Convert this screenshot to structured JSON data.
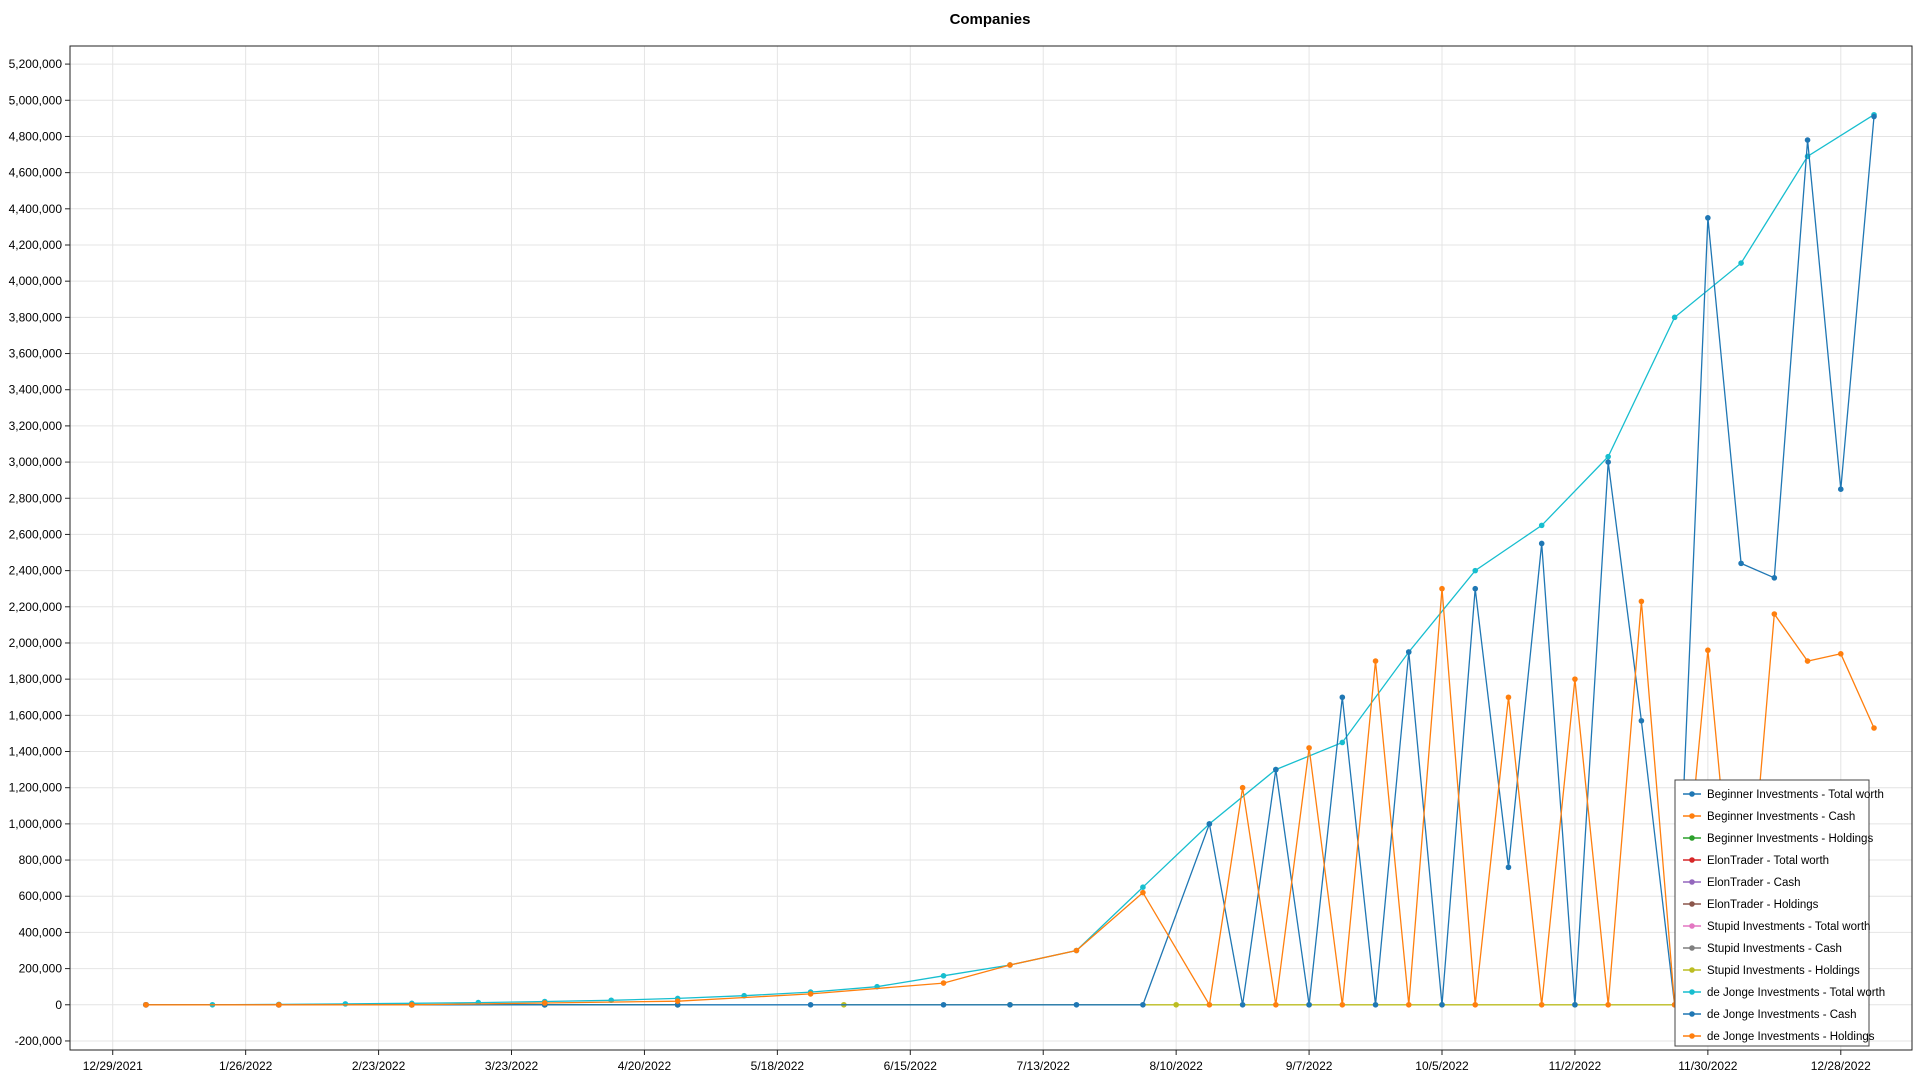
{
  "chart_data": {
    "type": "line",
    "title": "Companies",
    "xlabel": "",
    "ylabel": "",
    "x_ticks": [
      "12/29/2021",
      "1/26/2022",
      "2/23/2022",
      "3/23/2022",
      "4/20/2022",
      "5/18/2022",
      "6/15/2022",
      "7/13/2022",
      "8/10/2022",
      "9/7/2022",
      "10/5/2022",
      "11/2/2022",
      "11/30/2022",
      "12/28/2022"
    ],
    "x_range": [
      "12/20/2021",
      "1/12/2023"
    ],
    "ylim": [
      -250000,
      5300000
    ],
    "y_ticks": [
      -200000,
      0,
      200000,
      400000,
      600000,
      800000,
      1000000,
      1200000,
      1400000,
      1600000,
      1800000,
      2000000,
      2200000,
      2400000,
      2600000,
      2800000,
      3000000,
      3200000,
      3400000,
      3600000,
      3800000,
      4000000,
      4200000,
      4400000,
      4600000,
      4800000,
      5000000,
      5200000
    ],
    "y_tick_labels": [
      "-200,000",
      "0",
      "200,000",
      "400,000",
      "600,000",
      "800,000",
      "1,000,000",
      "1,200,000",
      "1,400,000",
      "1,600,000",
      "1,800,000",
      "2,000,000",
      "2,200,000",
      "2,400,000",
      "2,600,000",
      "2,800,000",
      "3,000,000",
      "3,200,000",
      "3,400,000",
      "3,600,000",
      "3,800,000",
      "4,000,000",
      "4,200,000",
      "4,400,000",
      "4,600,000",
      "4,800,000",
      "5,000,000",
      "5,200,000"
    ],
    "grid": true,
    "legend_position": "bottom-right",
    "series": [
      {
        "name": "Beginner Investments - Total worth",
        "color": "#1f77b4",
        "x": [
          "1/5/2022",
          "2/2/2022",
          "3/2/2022",
          "3/30/2022",
          "4/27/2022"
        ],
        "values": [
          0,
          0,
          0,
          0,
          0
        ]
      },
      {
        "name": "Beginner Investments - Cash",
        "color": "#ff7f0e",
        "x": [
          "1/5/2022",
          "2/2/2022",
          "3/2/2022",
          "3/30/2022",
          "4/27/2022"
        ],
        "values": [
          0,
          0,
          0,
          0,
          0
        ]
      },
      {
        "name": "Beginner Investments - Holdings",
        "color": "#2ca02c",
        "x": [
          "1/5/2022",
          "2/2/2022",
          "3/2/2022",
          "3/30/2022",
          "4/27/2022"
        ],
        "values": [
          0,
          0,
          0,
          0,
          0
        ]
      },
      {
        "name": "ElonTrader - Total worth",
        "color": "#d62728",
        "x": [
          "1/5/2022",
          "2/2/2022",
          "3/2/2022"
        ],
        "values": [
          0,
          0,
          0
        ]
      },
      {
        "name": "ElonTrader - Cash",
        "color": "#9467bd",
        "x": [
          "1/5/2022",
          "2/2/2022",
          "3/2/2022"
        ],
        "values": [
          0,
          0,
          0
        ]
      },
      {
        "name": "ElonTrader - Holdings",
        "color": "#8c564b",
        "x": [
          "1/5/2022",
          "2/2/2022",
          "3/2/2022"
        ],
        "values": [
          0,
          0,
          0
        ]
      },
      {
        "name": "Stupid Investments - Total worth",
        "color": "#e377c2",
        "x": [
          "1/5/2022",
          "2/2/2022",
          "3/2/2022"
        ],
        "values": [
          0,
          0,
          0
        ]
      },
      {
        "name": "Stupid Investments - Cash",
        "color": "#7f7f7f",
        "x": [
          "1/5/2022",
          "2/2/2022",
          "3/2/2022"
        ],
        "values": [
          0,
          0,
          0
        ]
      },
      {
        "name": "Stupid Investments - Holdings",
        "color": "#bcbd22",
        "x": [
          "6/1/2022",
          "7/6/2022",
          "8/10/2022",
          "9/7/2022",
          "10/5/2022",
          "11/2/2022",
          "11/30/2022"
        ],
        "values": [
          0,
          0,
          0,
          0,
          0,
          0,
          0
        ]
      },
      {
        "name": "de Jonge Investments - Total worth",
        "color": "#17becf",
        "x": [
          "1/5/2022",
          "1/19/2022",
          "2/2/2022",
          "2/16/2022",
          "3/2/2022",
          "3/16/2022",
          "3/30/2022",
          "4/13/2022",
          "4/27/2022",
          "5/11/2022",
          "5/25/2022",
          "6/8/2022",
          "6/22/2022",
          "7/6/2022",
          "7/20/2022",
          "8/3/2022",
          "8/17/2022",
          "8/31/2022",
          "9/14/2022",
          "9/28/2022",
          "10/12/2022",
          "10/26/2022",
          "11/9/2022",
          "11/23/2022",
          "12/7/2022",
          "12/21/2022",
          "1/4/2023"
        ],
        "values": [
          0,
          0,
          2000,
          5000,
          8000,
          12000,
          18000,
          25000,
          35000,
          50000,
          70000,
          100000,
          160000,
          220000,
          300000,
          650000,
          1000000,
          1300000,
          1450000,
          1950000,
          2400000,
          2650000,
          3030000,
          3800000,
          4100000,
          4690000,
          4920000
        ]
      },
      {
        "name": "de Jonge Investments - Cash",
        "color": "#1f77b4",
        "x": [
          "1/5/2022",
          "2/2/2022",
          "3/2/2022",
          "3/30/2022",
          "4/27/2022",
          "5/25/2022",
          "6/22/2022",
          "7/6/2022",
          "7/20/2022",
          "8/3/2022",
          "8/17/2022",
          "8/24/2022",
          "8/31/2022",
          "9/7/2022",
          "9/14/2022",
          "9/21/2022",
          "9/28/2022",
          "10/5/2022",
          "10/12/2022",
          "10/19/2022",
          "10/26/2022",
          "11/2/2022",
          "11/9/2022",
          "11/16/2022",
          "11/23/2022",
          "11/30/2022",
          "12/7/2022",
          "12/14/2022",
          "12/21/2022",
          "12/28/2022",
          "1/4/2023"
        ],
        "values": [
          0,
          0,
          0,
          0,
          0,
          0,
          0,
          0,
          0,
          0,
          1000000,
          0,
          1300000,
          0,
          1700000,
          0,
          1950000,
          0,
          2300000,
          760000,
          2550000,
          0,
          3000000,
          1570000,
          0,
          4350000,
          2440000,
          2360000,
          4780000,
          2850000,
          4910000
        ]
      },
      {
        "name": "de Jonge Investments - Holdings",
        "color": "#ff7f0e",
        "x": [
          "1/5/2022",
          "2/2/2022",
          "3/2/2022",
          "3/30/2022",
          "4/27/2022",
          "5/25/2022",
          "6/22/2022",
          "7/6/2022",
          "7/20/2022",
          "8/3/2022",
          "8/17/2022",
          "8/24/2022",
          "8/31/2022",
          "9/7/2022",
          "9/14/2022",
          "9/21/2022",
          "9/28/2022",
          "10/5/2022",
          "10/12/2022",
          "10/19/2022",
          "10/26/2022",
          "11/2/2022",
          "11/9/2022",
          "11/16/2022",
          "11/23/2022",
          "11/30/2022",
          "12/7/2022",
          "12/14/2022",
          "12/21/2022",
          "12/28/2022",
          "1/4/2023"
        ],
        "values": [
          0,
          0,
          0,
          10000,
          20000,
          60000,
          120000,
          220000,
          300000,
          620000,
          0,
          1200000,
          0,
          1420000,
          0,
          1900000,
          0,
          2300000,
          0,
          1700000,
          0,
          1800000,
          0,
          2230000,
          0,
          1960000,
          0,
          2160000,
          1900000,
          1940000,
          1530000
        ]
      }
    ]
  }
}
